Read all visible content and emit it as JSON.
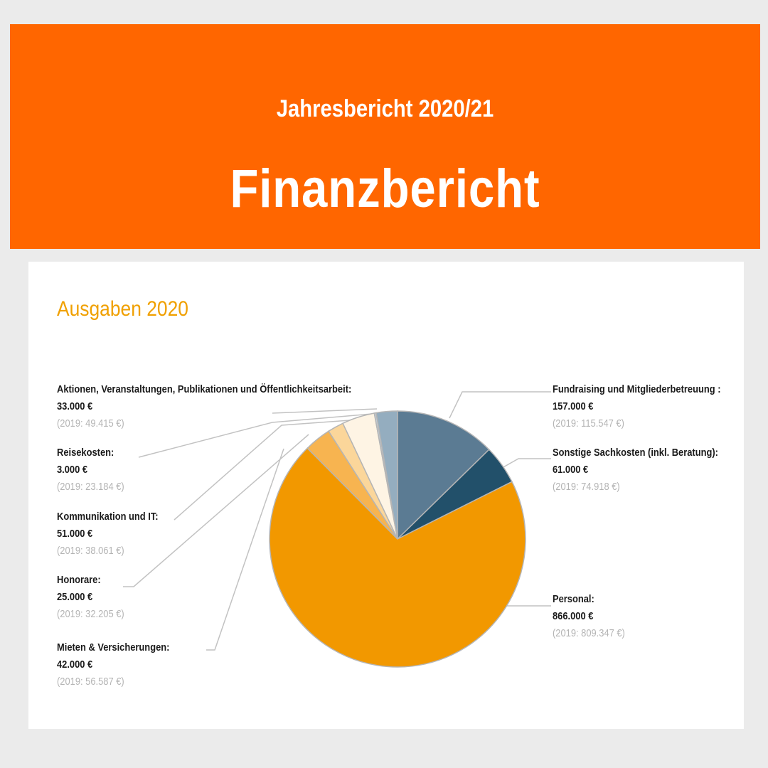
{
  "banner": {
    "subtitle": "Jahresbericht 2020/21",
    "title": "Finanzbericht"
  },
  "colors": {
    "banner": "#ff6600",
    "chart_title": "#f0a000"
  },
  "chart_data": {
    "type": "pie",
    "title": "Ausgaben 2020",
    "currency": "€",
    "slices": [
      {
        "name": "Fundraising und Mitgliederbetreuung :",
        "value": 157000,
        "value_label": "157.000 €",
        "prev_label": "(2019: 115.547 €)",
        "prev_value": 115547,
        "color": "#5b7b93"
      },
      {
        "name": "Sonstige Sachkosten (inkl. Beratung):",
        "value": 61000,
        "value_label": "61.000 €",
        "prev_label": "(2019: 74.918 €)",
        "prev_value": 74918,
        "color": "#22506a"
      },
      {
        "name": "Personal:",
        "value": 866000,
        "value_label": "866.000 €",
        "prev_label": "(2019: 809.347 €)",
        "prev_value": 809347,
        "color": "#f29800"
      },
      {
        "name": "Mieten & Versicherungen:",
        "value": 42000,
        "value_label": "42.000 €",
        "prev_label": "(2019: 56.587 €)",
        "prev_value": 56587,
        "color": "#f7b450"
      },
      {
        "name": "Honorare:",
        "value": 25000,
        "value_label": "25.000 €",
        "prev_label": "(2019: 32.205 €)",
        "prev_value": 32205,
        "color": "#fbd69a"
      },
      {
        "name": "Kommunikation und IT:",
        "value": 51000,
        "value_label": "51.000 €",
        "prev_label": "(2019: 38.061 €)",
        "prev_value": 38061,
        "color": "#fef4e4"
      },
      {
        "name": "Reisekosten:",
        "value": 3000,
        "value_label": "3.000 €",
        "prev_label": "(2019: 23.184 €)",
        "prev_value": 23184,
        "color": "#c0ccd6"
      },
      {
        "name": "Aktionen, Veranstaltungen, Publikationen und Öffentlichkeitsarbeit:",
        "value": 33000,
        "value_label": "33.000 €",
        "prev_label": "(2019: 49.415 €)",
        "prev_value": 49415,
        "color": "#94adbf"
      }
    ]
  }
}
